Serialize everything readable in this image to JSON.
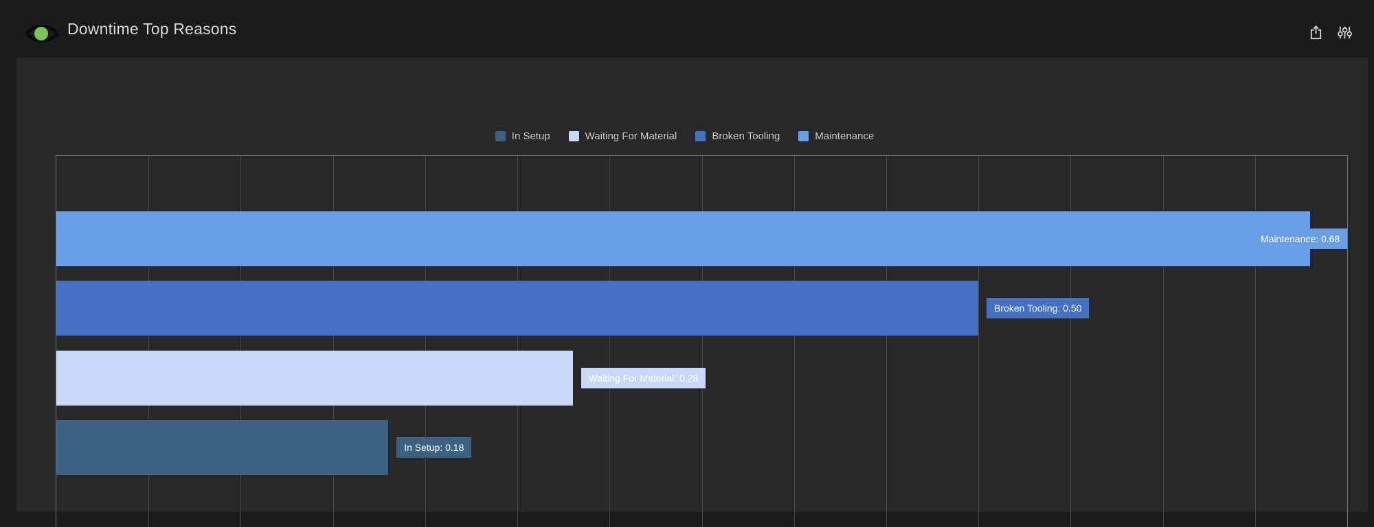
{
  "header": {
    "title": "Downtime Top Reasons",
    "logo_icon": "eye-icon",
    "buttons": [
      {
        "name": "export",
        "icon": "share-icon"
      },
      {
        "name": "filters",
        "icon": "sliders-icon"
      }
    ]
  },
  "colors": {
    "background": "#1B1B1B",
    "panel": "#282828",
    "plot_border": "#757575",
    "gridline": "#454545",
    "axis_text": "#C9C9C9",
    "legend_text": "#C8C8C8",
    "title_text": "#D6D6D6",
    "bar_label_text": "#FFFFFF",
    "logo_green": "#79C556",
    "icon_gray": "#CFCFCF",
    "series": {
      "In Setup": "#3C6283",
      "Waiting For Material": "#C7D9F7",
      "Broken Tooling": "#4471C1",
      "Maintenance": "#699FE6"
    }
  },
  "chart_data": {
    "type": "bar",
    "orientation": "horizontal",
    "title": "Downtime Top Reasons",
    "categories": [
      "In Setup",
      "Waiting For Material",
      "Broken Tooling",
      "Maintenance"
    ],
    "values": [
      0.18,
      0.28,
      0.5,
      0.68
    ],
    "bar_labels": [
      "In Setup: 0.18",
      "Waiting For Material: 0.28",
      "Broken Tooling: 0.50",
      "Maintenance: 0.68"
    ],
    "bar_order_top_to_bottom": [
      "Maintenance",
      "Broken Tooling",
      "Waiting For Material",
      "In Setup"
    ],
    "legend": [
      "In Setup",
      "Waiting For Material",
      "Broken Tooling",
      "Maintenance"
    ],
    "legend_position": "top-center",
    "xlim": [
      0,
      0.7
    ],
    "x_ticks": [
      "0",
      "0.05",
      "0.1",
      "0.15",
      "0.2",
      "0.25",
      "0.3",
      "0.35",
      "0.4",
      "0.45",
      "0.5",
      "0.55",
      "0.6",
      "0.65",
      "0.7"
    ],
    "grid": true
  }
}
